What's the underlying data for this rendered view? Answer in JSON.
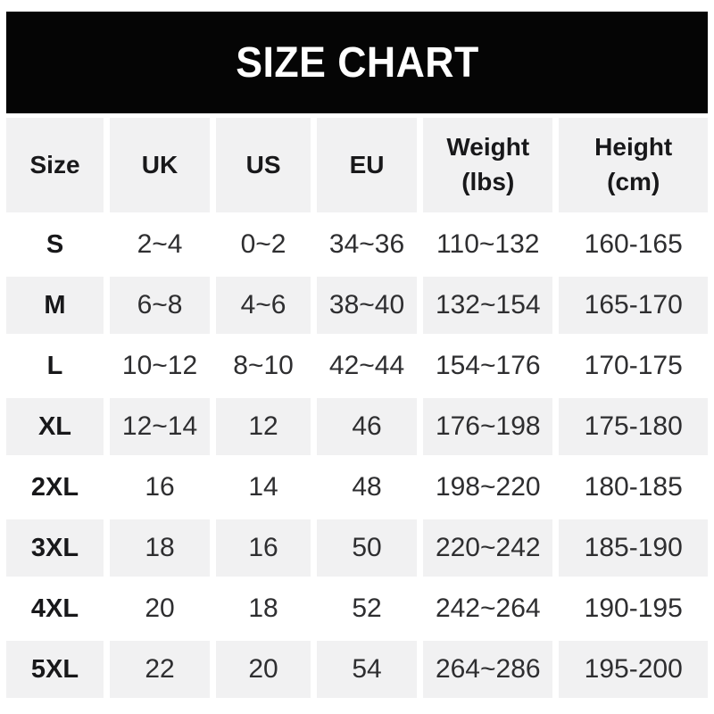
{
  "banner": {
    "bg_color": "#050505",
    "text_color": "#ffffff"
  },
  "chart_data": {
    "type": "table",
    "title": "SIZE CHART",
    "columns": [
      {
        "label": "Size",
        "sub": ""
      },
      {
        "label": "UK",
        "sub": ""
      },
      {
        "label": "US",
        "sub": ""
      },
      {
        "label": "EU",
        "sub": ""
      },
      {
        "label": "Weight",
        "sub": "(lbs)"
      },
      {
        "label": "Height",
        "sub": "(cm)"
      }
    ],
    "rows": [
      {
        "cells": [
          "S",
          "2~4",
          "0~2",
          "34~36",
          "110~132",
          "160-165"
        ]
      },
      {
        "cells": [
          "M",
          "6~8",
          "4~6",
          "38~40",
          "132~154",
          "165-170"
        ]
      },
      {
        "cells": [
          "L",
          "10~12",
          "8~10",
          "42~44",
          "154~176",
          "170-175"
        ]
      },
      {
        "cells": [
          "XL",
          "12~14",
          "12",
          "46",
          "176~198",
          "175-180"
        ]
      },
      {
        "cells": [
          "2XL",
          "16",
          "14",
          "48",
          "198~220",
          "180-185"
        ]
      },
      {
        "cells": [
          "3XL",
          "18",
          "16",
          "50",
          "220~242",
          "185-190"
        ]
      },
      {
        "cells": [
          "4XL",
          "20",
          "18",
          "52",
          "242~264",
          "190-195"
        ]
      },
      {
        "cells": [
          "5XL",
          "22",
          "20",
          "54",
          "264~286",
          "195-200"
        ]
      }
    ],
    "layout": {
      "alternating_row_color": "#f1f1f2",
      "header_row_color": "#f1f1f2",
      "row_pattern": "white rows S,L,2XL,4XL; gray rows M,XL,3XL,5XL",
      "legend_position": "none",
      "grid": "white gutters between cells"
    }
  }
}
